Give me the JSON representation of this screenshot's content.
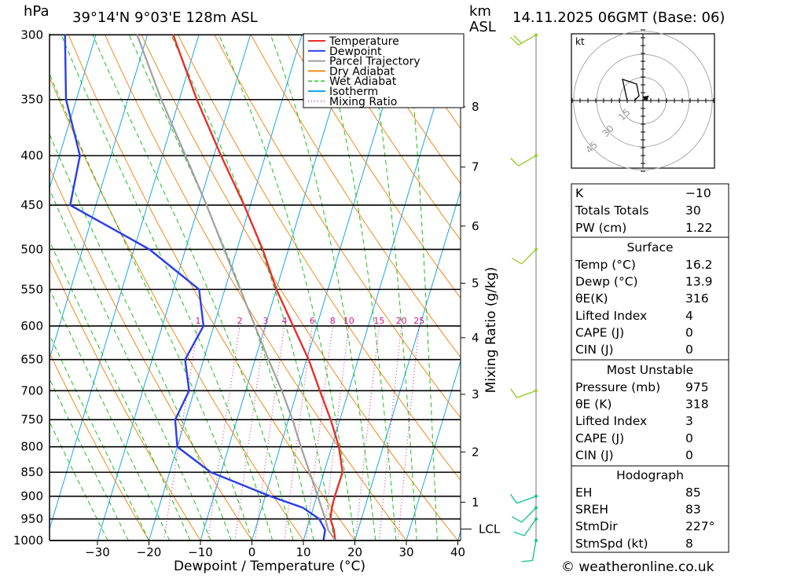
{
  "header": {
    "pressure_unit": "hPa",
    "location": "39°14'N  9°03'E  128m  ASL",
    "height_unit_line1": "km",
    "height_unit_line2": "ASL",
    "datetime": "14.11.2025  06GMT  (Base: 06)"
  },
  "legend": [
    {
      "label": "Temperature",
      "color": "#e8302a",
      "style": "solid"
    },
    {
      "label": "Dewpoint",
      "color": "#2a3ee8",
      "style": "solid"
    },
    {
      "label": "Parcel Trajectory",
      "color": "#a0a0a0",
      "style": "solid"
    },
    {
      "label": "Dry Adiabat",
      "color": "#f08a1e",
      "style": "solid"
    },
    {
      "label": "Wet Adiabat",
      "color": "#1fbf1f",
      "style": "dash"
    },
    {
      "label": "Isotherm",
      "color": "#19a7e6",
      "style": "solid"
    },
    {
      "label": "Mixing Ratio",
      "color": "#d4148a",
      "style": "dot"
    }
  ],
  "chart_data": {
    "type": "line",
    "title": "Skew-T log-P sounding",
    "xlabel": "Dewpoint / Temperature (°C)",
    "ylabel": "hPa",
    "y2label": "Mixing Ratio (g/kg)",
    "xlim": [
      -40,
      40
    ],
    "ylim": [
      1000,
      300
    ],
    "x_ticks": [
      -30,
      -20,
      -10,
      0,
      10,
      20,
      30,
      40
    ],
    "x_tick_labels": [
      "−30",
      "−20",
      "−10",
      "0",
      "10",
      "20",
      "30",
      "40"
    ],
    "pressure_levels": [
      300,
      350,
      400,
      450,
      500,
      550,
      600,
      650,
      700,
      750,
      800,
      850,
      900,
      950,
      1000
    ],
    "height_km_labels": [
      "8",
      "7",
      "6",
      "5",
      "4",
      "3",
      "2",
      "1"
    ],
    "height_km_pressures": [
      356,
      411,
      473,
      542,
      617,
      706,
      810,
      913
    ],
    "lcl_label": "LCL",
    "lcl_pressure": 973,
    "mixing_ratio_labels": [
      "1",
      "2",
      "3",
      "4",
      "6",
      "8",
      "10",
      "15",
      "20",
      "25"
    ],
    "mixing_ratio_values": [
      1,
      2,
      3,
      4,
      6,
      8,
      10,
      15,
      20,
      25
    ],
    "series": [
      {
        "name": "Temperature",
        "color": "#e8302a",
        "points": [
          [
            1000,
            16.2
          ],
          [
            975,
            15.3
          ],
          [
            950,
            14.0
          ],
          [
            925,
            13.6
          ],
          [
            900,
            13.5
          ],
          [
            850,
            13.6
          ],
          [
            800,
            11.4
          ],
          [
            750,
            8.2
          ],
          [
            700,
            4.4
          ],
          [
            650,
            0.4
          ],
          [
            600,
            -4.6
          ],
          [
            550,
            -10.0
          ],
          [
            500,
            -15.0
          ],
          [
            450,
            -21.2
          ],
          [
            400,
            -28.6
          ],
          [
            350,
            -36.6
          ],
          [
            300,
            -45.0
          ]
        ]
      },
      {
        "name": "Dewpoint",
        "color": "#2a3ee8",
        "points": [
          [
            1000,
            13.9
          ],
          [
            975,
            13.6
          ],
          [
            950,
            11.8
          ],
          [
            925,
            8.0
          ],
          [
            900,
            1.0
          ],
          [
            850,
            -12.0
          ],
          [
            800,
            -20.0
          ],
          [
            750,
            -22.0
          ],
          [
            700,
            -21.0
          ],
          [
            650,
            -23.6
          ],
          [
            600,
            -22.0
          ],
          [
            550,
            -25.0
          ],
          [
            500,
            -37.0
          ],
          [
            450,
            -55.0
          ],
          [
            400,
            -56.0
          ],
          [
            350,
            -62.0
          ],
          [
            300,
            -66.0
          ]
        ]
      },
      {
        "name": "Parcel Trajectory",
        "color": "#a0a0a0",
        "points": [
          [
            1000,
            16.2
          ],
          [
            975,
            14.2
          ],
          [
            950,
            13.0
          ],
          [
            900,
            10.2
          ],
          [
            850,
            7.2
          ],
          [
            800,
            4.0
          ],
          [
            750,
            0.8
          ],
          [
            700,
            -3.0
          ],
          [
            650,
            -7.4
          ],
          [
            600,
            -12.0
          ],
          [
            550,
            -17.0
          ],
          [
            500,
            -22.5
          ],
          [
            450,
            -28.5
          ],
          [
            400,
            -35.5
          ],
          [
            350,
            -43.5
          ],
          [
            300,
            -52.0
          ]
        ]
      }
    ],
    "wind_barbs": [
      {
        "pressure": 1000,
        "dir": 190,
        "speed": 10
      },
      {
        "pressure": 950,
        "dir": 215,
        "speed": 10
      },
      {
        "pressure": 925,
        "dir": 225,
        "speed": 10
      },
      {
        "pressure": 900,
        "dir": 250,
        "speed": 10
      },
      {
        "pressure": 700,
        "dir": 250,
        "speed": 10
      },
      {
        "pressure": 500,
        "dir": 225,
        "speed": 10
      },
      {
        "pressure": 400,
        "dir": 240,
        "speed": 10
      },
      {
        "pressure": 300,
        "dir": 240,
        "speed": 20
      }
    ]
  },
  "hodograph": {
    "unit": "kt",
    "ring_labels": [
      "15",
      "30",
      "45"
    ],
    "trace_uv": [
      [
        -2,
        -1
      ],
      [
        -4,
        8
      ],
      [
        2,
        6
      ],
      [
        3,
        1
      ],
      [
        1,
        -1
      ]
    ],
    "storm_motion_uv": [
      6,
      5
    ]
  },
  "indices": [
    {
      "label": "K",
      "value": "−10"
    },
    {
      "label": "Totals Totals",
      "value": "30"
    },
    {
      "label": "PW (cm)",
      "value": "1.22"
    }
  ],
  "surface": {
    "title": "Surface",
    "rows": [
      {
        "label": "Temp (°C)",
        "value": "16.2"
      },
      {
        "label": "Dewp (°C)",
        "value": "13.9"
      },
      {
        "label": "θE(K)",
        "value": "316"
      },
      {
        "label": "Lifted Index",
        "value": "4"
      },
      {
        "label": "CAPE (J)",
        "value": "0"
      },
      {
        "label": "CIN (J)",
        "value": "0"
      }
    ]
  },
  "most_unstable": {
    "title": "Most Unstable",
    "rows": [
      {
        "label": "Pressure (mb)",
        "value": "975"
      },
      {
        "label": "θE (K)",
        "value": "318"
      },
      {
        "label": "Lifted Index",
        "value": "3"
      },
      {
        "label": "CAPE (J)",
        "value": "0"
      },
      {
        "label": "CIN (J)",
        "value": "0"
      }
    ]
  },
  "hodo_params": {
    "title": "Hodograph",
    "rows": [
      {
        "label": "EH",
        "value": "85"
      },
      {
        "label": "SREH",
        "value": "83"
      },
      {
        "label": "StmDir",
        "value": "227°"
      },
      {
        "label": "StmSpd (kt)",
        "value": "8"
      }
    ]
  },
  "footer": {
    "copyright": "© weatheronline.co.uk"
  }
}
